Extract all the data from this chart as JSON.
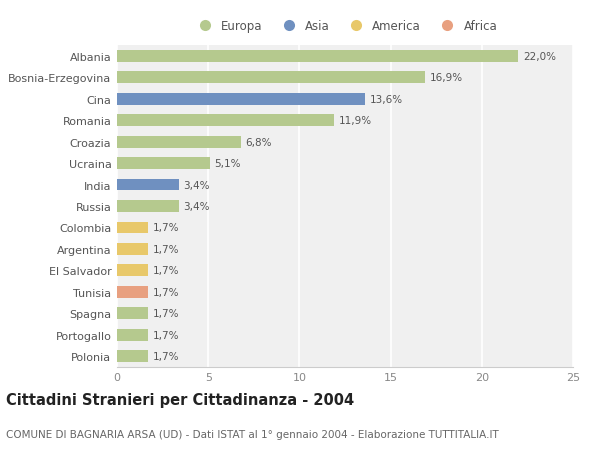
{
  "categories": [
    "Albania",
    "Bosnia-Erzegovina",
    "Cina",
    "Romania",
    "Croazia",
    "Ucraina",
    "India",
    "Russia",
    "Colombia",
    "Argentina",
    "El Salvador",
    "Tunisia",
    "Spagna",
    "Portogallo",
    "Polonia"
  ],
  "values": [
    22.0,
    16.9,
    13.6,
    11.9,
    6.8,
    5.1,
    3.4,
    3.4,
    1.7,
    1.7,
    1.7,
    1.7,
    1.7,
    1.7,
    1.7
  ],
  "labels": [
    "22,0%",
    "16,9%",
    "13,6%",
    "11,9%",
    "6,8%",
    "5,1%",
    "3,4%",
    "3,4%",
    "1,7%",
    "1,7%",
    "1,7%",
    "1,7%",
    "1,7%",
    "1,7%",
    "1,7%"
  ],
  "continent": [
    "Europa",
    "Europa",
    "Asia",
    "Europa",
    "Europa",
    "Europa",
    "Asia",
    "Europa",
    "America",
    "America",
    "America",
    "Africa",
    "Europa",
    "Europa",
    "Europa"
  ],
  "colors": {
    "Europa": "#b5c98e",
    "Asia": "#6f90c0",
    "America": "#e8c86a",
    "Africa": "#e8a080"
  },
  "legend_order": [
    "Europa",
    "Asia",
    "America",
    "Africa"
  ],
  "title": "Cittadini Stranieri per Cittadinanza - 2004",
  "subtitle": "COMUNE DI BAGNARIA ARSA (UD) - Dati ISTAT al 1° gennaio 2004 - Elaborazione TUTTITALIA.IT",
  "xlim": [
    0,
    25
  ],
  "xticks": [
    0,
    5,
    10,
    15,
    20,
    25
  ],
  "bg_color": "#ffffff",
  "plot_bg_color": "#f0f0f0",
  "grid_color": "#ffffff",
  "title_fontsize": 10.5,
  "subtitle_fontsize": 7.5,
  "bar_height": 0.55,
  "label_fontsize": 7.5,
  "tick_fontsize": 8,
  "legend_fontsize": 8.5
}
